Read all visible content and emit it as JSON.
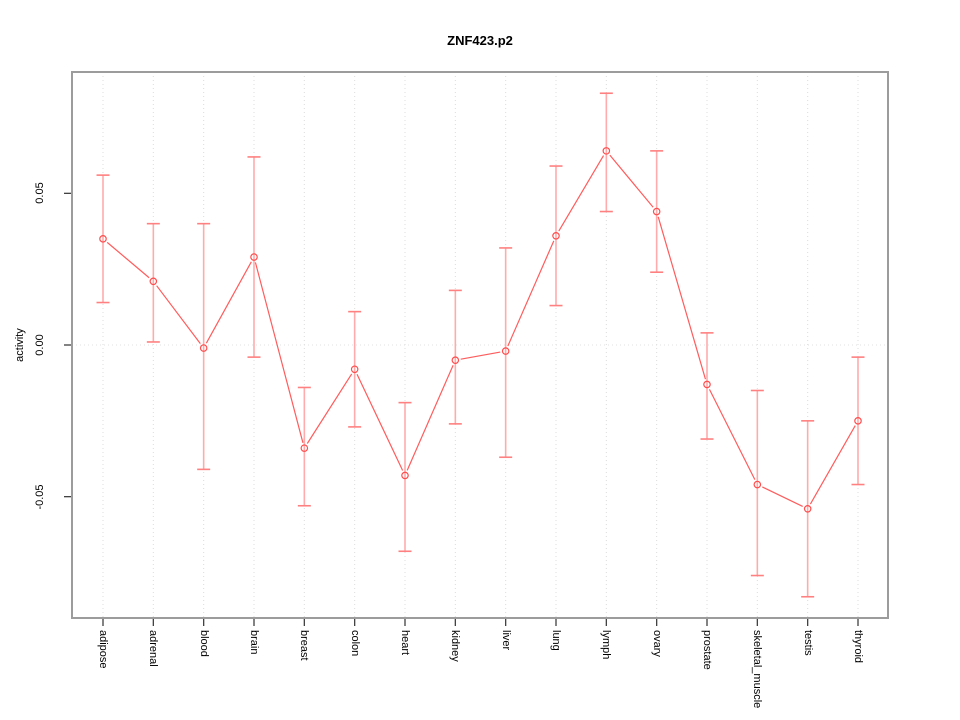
{
  "chart_data": {
    "type": "scatter",
    "title": "ZNF423.p2",
    "ylabel": "activity",
    "xlabel": "",
    "legend": "none",
    "grid": "vertical dotted gridlines at each category; dotted horizontal line at zero",
    "categories": [
      "adipose",
      "adrenal",
      "blood",
      "brain",
      "breast",
      "colon",
      "heart",
      "kidney",
      "liver",
      "lung",
      "lymph",
      "ovary",
      "prostate",
      "skeletal_muscle",
      "testis",
      "thyroid"
    ],
    "series": [
      {
        "name": "activity",
        "values": [
          0.035,
          0.021,
          -0.001,
          0.029,
          -0.034,
          -0.008,
          -0.043,
          -0.005,
          -0.002,
          0.036,
          0.064,
          0.044,
          -0.013,
          -0.046,
          -0.054,
          -0.025
        ],
        "lower": [
          0.014,
          0.001,
          -0.041,
          -0.004,
          -0.053,
          -0.027,
          -0.068,
          -0.026,
          -0.037,
          0.013,
          0.044,
          0.024,
          -0.031,
          -0.076,
          -0.083,
          -0.046
        ],
        "upper": [
          0.056,
          0.04,
          0.04,
          0.062,
          -0.014,
          0.011,
          -0.019,
          0.018,
          0.032,
          0.059,
          0.083,
          0.064,
          0.004,
          -0.015,
          -0.025,
          -0.004
        ]
      }
    ],
    "yticks": [
      {
        "value": 0.05,
        "label": "0.05"
      },
      {
        "value": 0.0,
        "label": "0.00"
      },
      {
        "value": -0.05,
        "label": "-0.05"
      }
    ],
    "ylim": [
      -0.09,
      0.09
    ],
    "colors": {
      "point": "#ff4d4d",
      "line": "#ff5c5c",
      "error_bar": "#ffabab",
      "error_cap": "#ff8080",
      "frame": "#9c9c9c",
      "gridline": "#dcdcdc",
      "zero_line": "#e0e0e0",
      "tick": "#404040",
      "text": "#000000",
      "background": "#ffffff"
    }
  }
}
